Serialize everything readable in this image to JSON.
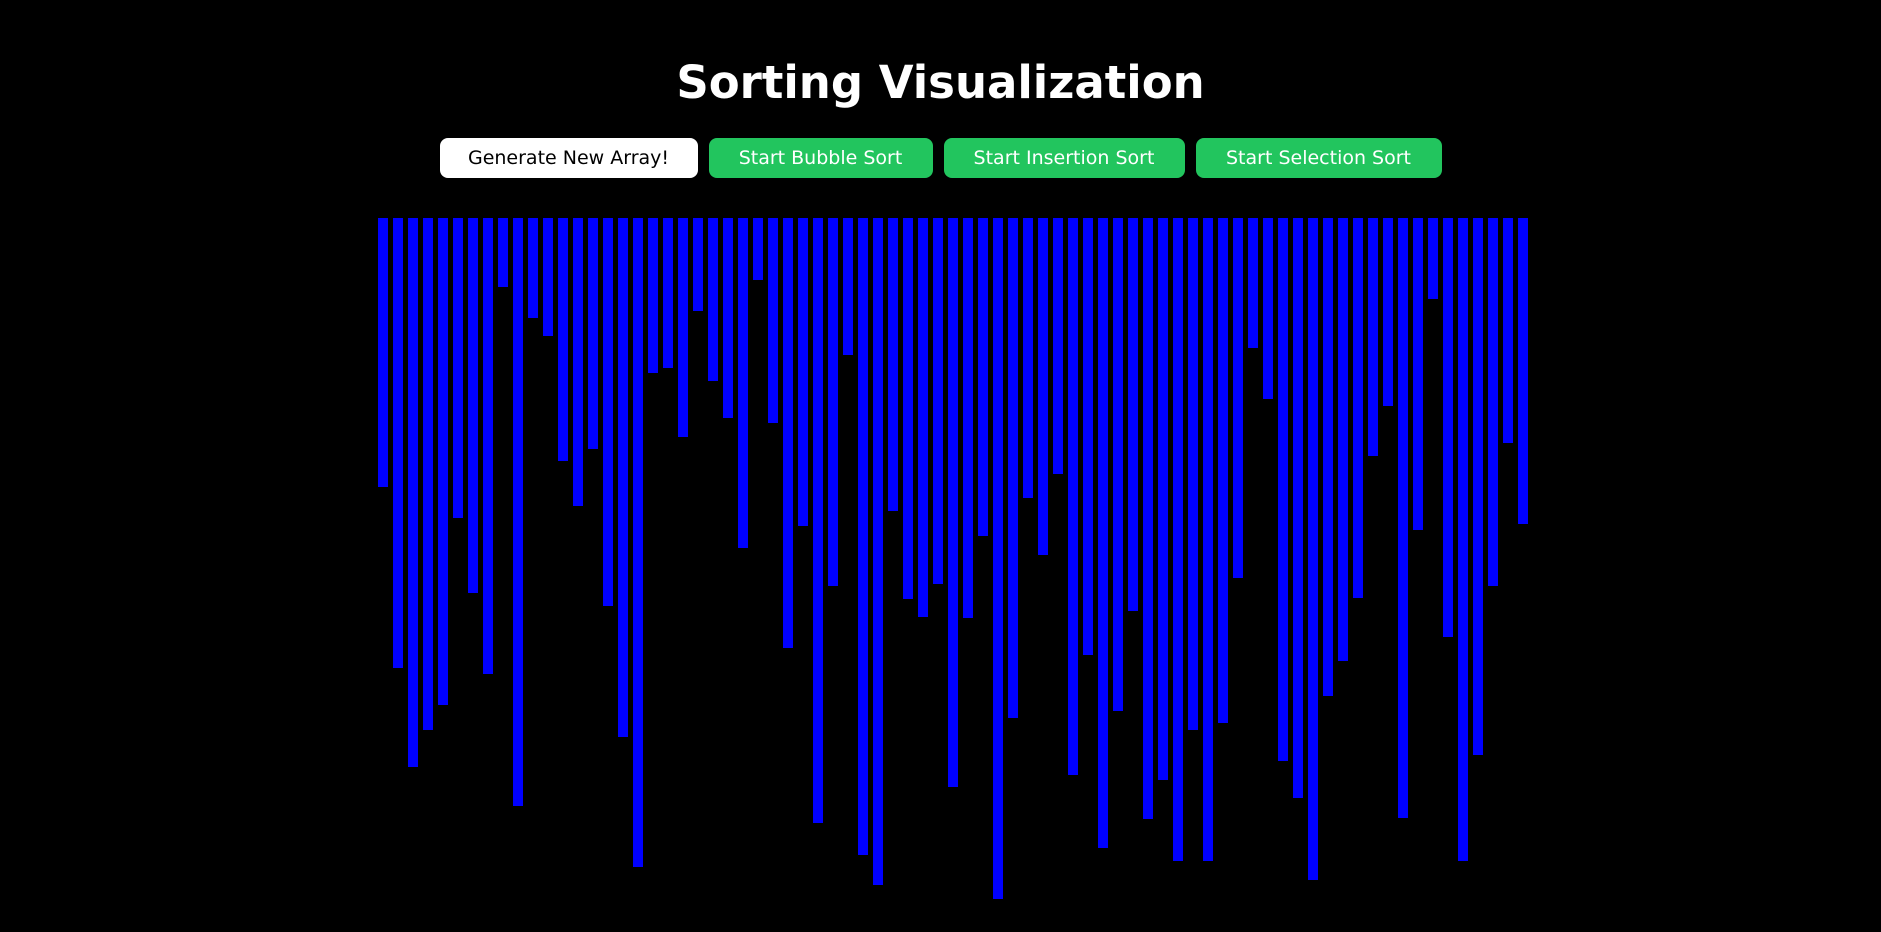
{
  "title": "Sorting Visualization",
  "buttons": {
    "generate": "Generate New Array!",
    "bubble": "Start Bubble Sort",
    "insertion": "Start Insertion Sort",
    "selection": "Start Selection Sort"
  },
  "colors": {
    "background": "#000000",
    "bar": "#0000ff",
    "accent": "#22c55e",
    "primary_button": "#ffffff"
  },
  "array": [
    269,
    450,
    549,
    512,
    487,
    300,
    375,
    456,
    69,
    588,
    100,
    118,
    243,
    288,
    231,
    388,
    519,
    649,
    155,
    150,
    219,
    93,
    163,
    200,
    330,
    62,
    205,
    430,
    308,
    605,
    368,
    137,
    637,
    667,
    293,
    381,
    399,
    366,
    569,
    400,
    318,
    681,
    500,
    280,
    337,
    256,
    557,
    437,
    630,
    493,
    393,
    601,
    562,
    643,
    512,
    643,
    505,
    360,
    130,
    181,
    543,
    580,
    662,
    478,
    443,
    380,
    238,
    188,
    600,
    312,
    81,
    419,
    643,
    537,
    368,
    225,
    306
  ]
}
